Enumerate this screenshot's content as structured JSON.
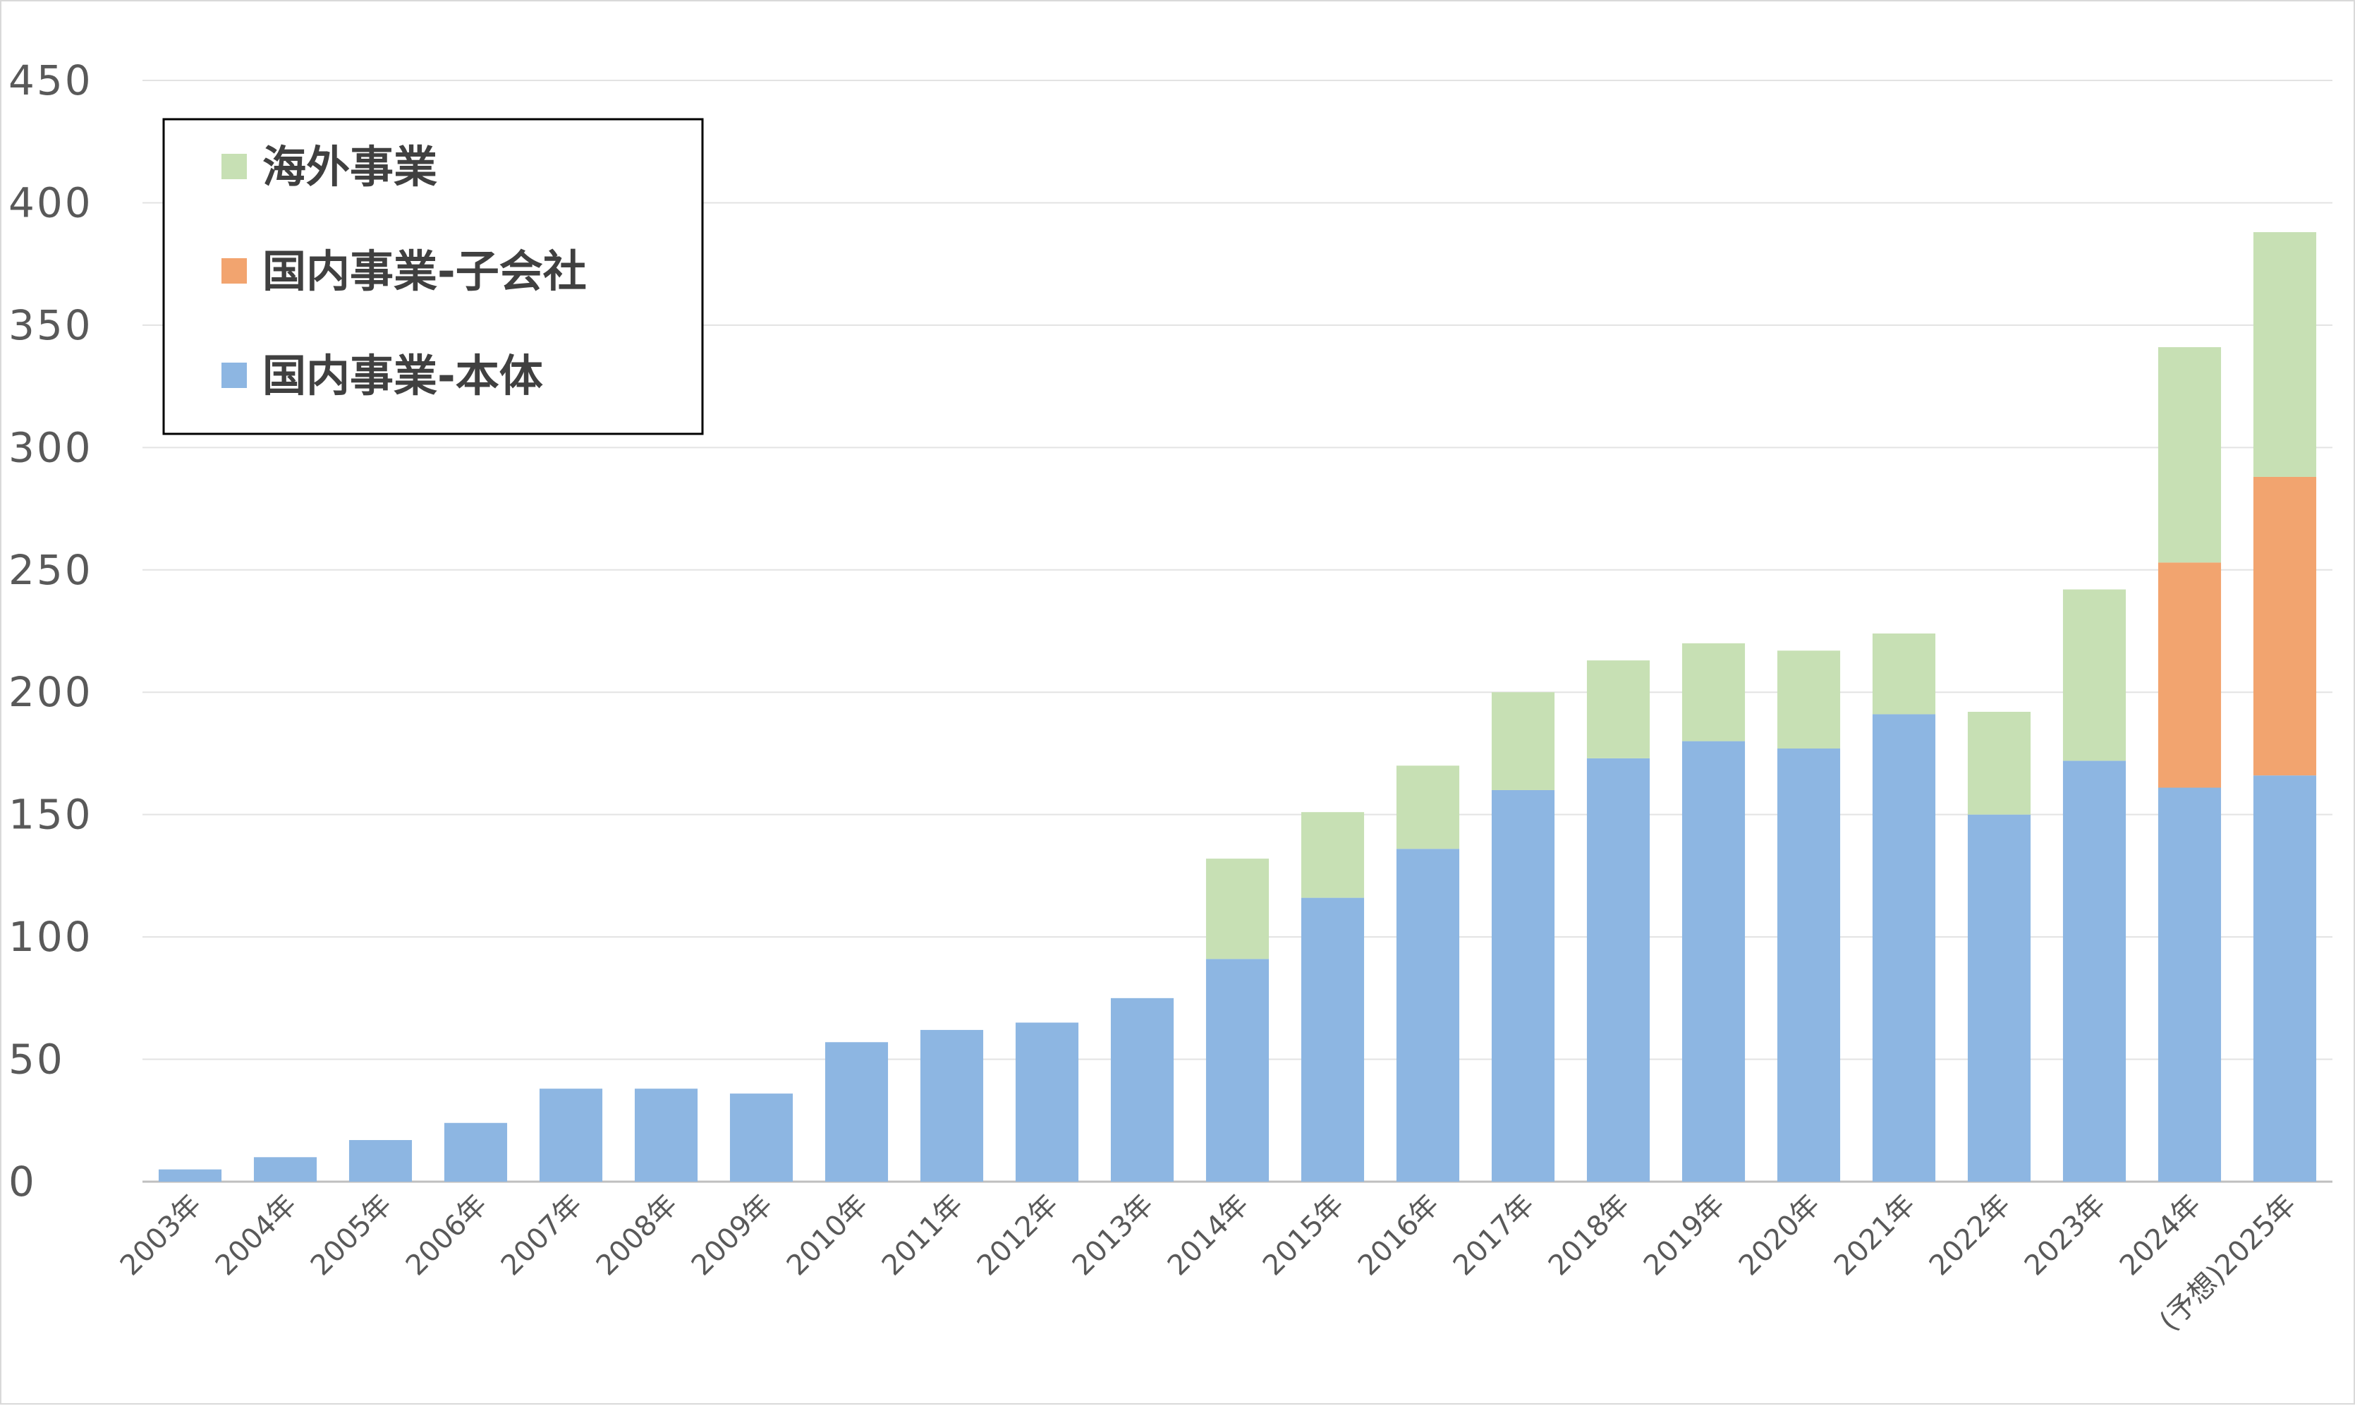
{
  "chart_data": {
    "type": "bar",
    "stacked": true,
    "categories": [
      "2003年",
      "2004年",
      "2005年",
      "2006年",
      "2007年",
      "2008年",
      "2009年",
      "2010年",
      "2011年",
      "2012年",
      "2013年",
      "2014年",
      "2015年",
      "2016年",
      "2017年",
      "2018年",
      "2019年",
      "2020年",
      "2021年",
      "2022年",
      "2023年",
      "2024年",
      "(予想)2025年"
    ],
    "series": [
      {
        "name": "国内事業-本体",
        "color": "#8db6e2",
        "values": [
          5,
          10,
          17,
          24,
          38,
          38,
          36,
          57,
          62,
          65,
          75,
          91,
          116,
          136,
          160,
          173,
          180,
          177,
          191,
          150,
          172,
          161,
          166
        ]
      },
      {
        "name": "国内事業-子会社",
        "color": "#f2a46f",
        "values": [
          0,
          0,
          0,
          0,
          0,
          0,
          0,
          0,
          0,
          0,
          0,
          0,
          0,
          0,
          0,
          0,
          0,
          0,
          0,
          0,
          0,
          92,
          122
        ]
      },
      {
        "name": "海外事業",
        "color": "#c7e0b4",
        "values": [
          0,
          0,
          0,
          0,
          0,
          0,
          0,
          0,
          0,
          0,
          0,
          41,
          35,
          34,
          40,
          40,
          40,
          40,
          33,
          42,
          70,
          88,
          100
        ]
      }
    ],
    "yticks": [
      "0",
      "50",
      "100",
      "150",
      "200",
      "250",
      "300",
      "350",
      "400",
      "450"
    ],
    "ylim": [
      0,
      450
    ],
    "grid": true,
    "legend": {
      "position": "top-left",
      "order": [
        "海外事業",
        "国内事業-子会社",
        "国内事業-本体"
      ]
    }
  }
}
